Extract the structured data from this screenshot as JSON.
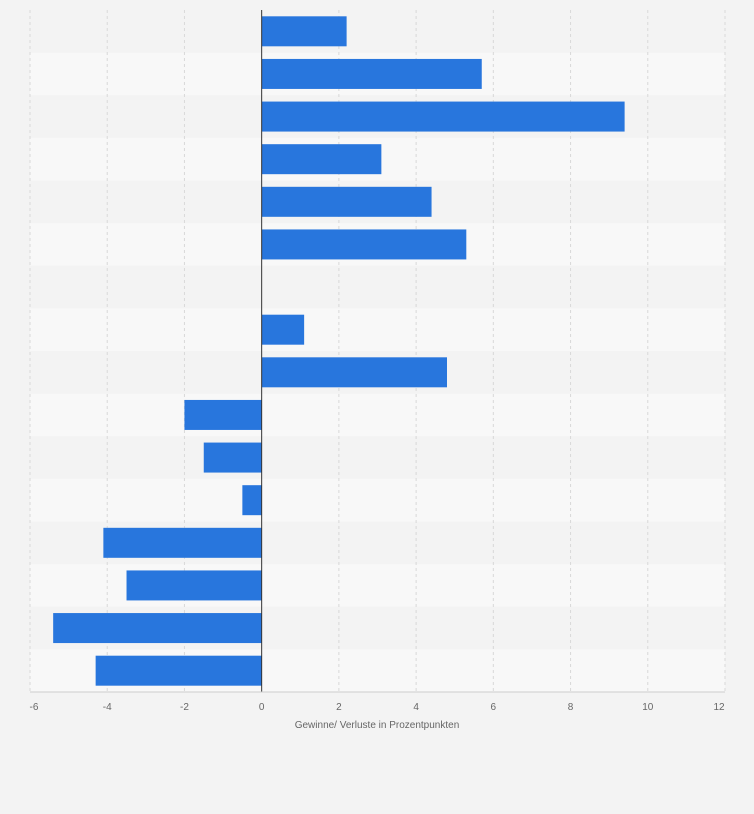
{
  "chart_data": {
    "type": "bar",
    "orientation": "horizontal",
    "title": "",
    "xlabel": "Gewinne/ Verluste in Prozentpunkten",
    "ylabel": "",
    "categories": [
      "",
      "",
      "",
      "",
      "",
      "",
      "",
      "",
      "",
      "",
      "",
      "",
      "",
      "",
      "",
      ""
    ],
    "values": [
      2.2,
      5.7,
      9.4,
      3.1,
      4.4,
      5.3,
      0,
      1.1,
      4.8,
      -2.0,
      -1.5,
      -0.5,
      -4.1,
      -3.5,
      -5.4,
      -4.3
    ],
    "xlim": [
      -6,
      12
    ],
    "xticks": [
      "-6",
      "-4",
      "-2",
      "0",
      "2",
      "4",
      "6",
      "8",
      "10",
      "12"
    ],
    "grid": true,
    "legend": "none",
    "colors": {
      "bar": "#2876dd",
      "band_dark": "#f3f3f3",
      "band_light": "#f8f8f8",
      "grid": "#d8d8d8",
      "axis": "#333333",
      "text": "#666666"
    }
  }
}
